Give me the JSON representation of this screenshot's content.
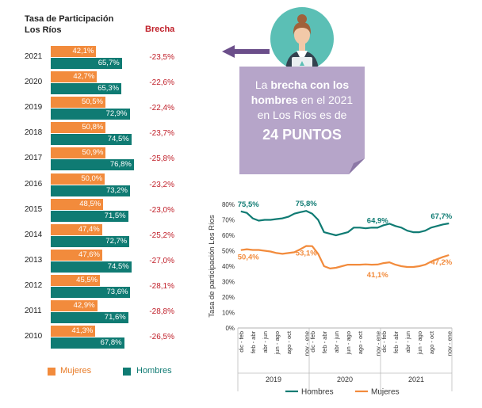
{
  "bar_panel": {
    "title_line1": "Tasa de Participación",
    "title_line2": "Los Ríos",
    "gap_header": "Brecha",
    "legend": {
      "women": "Mujeres",
      "men": "Hombres"
    }
  },
  "callout": {
    "part1": "La ",
    "part2": "brecha con los hombres",
    "part3": " en el 2021 en Los Ríos es de",
    "highlight": "24 PUNTOS"
  },
  "colors": {
    "women": "#f28b3c",
    "men": "#0f7b73",
    "gap": "#c0202a",
    "callout": "#b6a5c9",
    "arrow": "#6b4e8a"
  },
  "chart_data": [
    {
      "type": "bar",
      "orientation": "horizontal",
      "title": "Tasa de Participación Los Ríos",
      "categories": [
        "2021",
        "2020",
        "2019",
        "2018",
        "2017",
        "2016",
        "2015",
        "2014",
        "2013",
        "2012",
        "2011",
        "2010"
      ],
      "series": [
        {
          "name": "Mujeres",
          "values": [
            42.1,
            42.7,
            50.5,
            50.8,
            50.9,
            50.0,
            48.5,
            47.4,
            47.6,
            45.5,
            42.9,
            41.3
          ],
          "labels": [
            "42,1%",
            "42,7%",
            "50,5%",
            "50,8%",
            "50,9%",
            "50,0%",
            "48,5%",
            "47,4%",
            "47,6%",
            "45,5%",
            "42,9%",
            "41,3%"
          ]
        },
        {
          "name": "Hombres",
          "values": [
            65.7,
            65.3,
            72.9,
            74.5,
            76.8,
            73.2,
            71.5,
            72.7,
            74.5,
            73.6,
            71.6,
            67.8
          ],
          "labels": [
            "65,7%",
            "65,3%",
            "72,9%",
            "74,5%",
            "76,8%",
            "73,2%",
            "71,5%",
            "72,7%",
            "74,5%",
            "73,6%",
            "71,6%",
            "67,8%"
          ]
        }
      ],
      "gap_labels": [
        "-23,5%",
        "-22,6%",
        "-22,4%",
        "-23,7%",
        "-25,8%",
        "-23,2%",
        "-23,0%",
        "-25,2%",
        "-27,0%",
        "-28,1%",
        "-28,8%",
        "-26,5%"
      ]
    },
    {
      "type": "line",
      "ylabel": "Tasa de participación Los Ríos",
      "ylim": [
        0,
        80
      ],
      "yticks": [
        "0%",
        "10%",
        "20%",
        "30%",
        "40%",
        "50%",
        "60%",
        "70%",
        "80%"
      ],
      "x": [
        "dic - feb",
        "ene - mar",
        "feb - abr",
        "mar - may",
        "abr - jun",
        "may - jul",
        "jun - ago",
        "jul - sep",
        "ago - oct",
        "sep - nov",
        "oct - dic",
        "nov - ene",
        "dic - feb",
        "ene - mar",
        "feb - abr",
        "mar - may",
        "abr - jun",
        "may - jul",
        "jun - ago",
        "jul - sep",
        "ago - oct",
        "sep - nov",
        "oct - dic",
        "nov - ene",
        "dic - feb",
        "ene - mar",
        "feb - abr",
        "mar - may",
        "abr - jun",
        "may - jul",
        "jun - ago",
        "jul - sep",
        "ago - oct",
        "sep - nov",
        "oct - dic",
        "nov - ene"
      ],
      "x_tick_labels": [
        "dic - feb",
        "feb - abr",
        "abr - jun",
        "jun - ago",
        "ago - oct",
        "nov - ene",
        "dic - feb",
        "feb - abr",
        "abr - jun",
        "jun - ago",
        "ago - oct",
        "nov - ene",
        "dic - feb",
        "feb - abr",
        "abr - jun",
        "jun - ago",
        "ago - oct",
        "nov - ene"
      ],
      "x_tick_index": [
        0,
        2,
        4,
        6,
        8,
        11,
        12,
        14,
        16,
        18,
        20,
        23,
        24,
        26,
        28,
        30,
        32,
        35
      ],
      "year_groups": [
        {
          "label": "2019",
          "start": 0,
          "end": 11
        },
        {
          "label": "2020",
          "start": 12,
          "end": 23
        },
        {
          "label": "2021",
          "start": 24,
          "end": 35
        }
      ],
      "series": [
        {
          "name": "Hombres",
          "values": [
            75.5,
            74.5,
            71,
            69.5,
            70,
            70,
            70.5,
            71,
            72,
            74,
            75,
            75.8,
            74,
            70,
            62,
            61,
            60,
            61,
            62,
            65,
            65,
            64.5,
            65,
            64.9,
            66.5,
            67.5,
            66,
            65,
            63,
            62,
            62,
            63,
            65,
            66,
            67,
            67.7
          ]
        },
        {
          "name": "Mujeres",
          "values": [
            50.4,
            51,
            50.5,
            50.5,
            50,
            49.5,
            48.5,
            48,
            48.5,
            49,
            51,
            53.1,
            53,
            48,
            40,
            38.5,
            39,
            40,
            41,
            41,
            41,
            41.2,
            41,
            41.1,
            42,
            42.5,
            41,
            40,
            39.5,
            39.5,
            40,
            41,
            43,
            44.5,
            46,
            47.2
          ]
        }
      ],
      "annotations": [
        {
          "series": "Hombres",
          "index": 0,
          "text": "75,5%"
        },
        {
          "series": "Hombres",
          "index": 11,
          "text": "75,8%"
        },
        {
          "series": "Hombres",
          "index": 23,
          "text": "64,9%"
        },
        {
          "series": "Hombres",
          "index": 35,
          "text": "67,7%"
        },
        {
          "series": "Mujeres",
          "index": 0,
          "text": "50,4%"
        },
        {
          "series": "Mujeres",
          "index": 11,
          "text": "53,1%"
        },
        {
          "series": "Mujeres",
          "index": 23,
          "text": "41,1%"
        },
        {
          "series": "Mujeres",
          "index": 35,
          "text": "47,2%"
        }
      ],
      "legend": [
        "Hombres",
        "Mujeres"
      ],
      "legend_position": "bottom"
    }
  ]
}
